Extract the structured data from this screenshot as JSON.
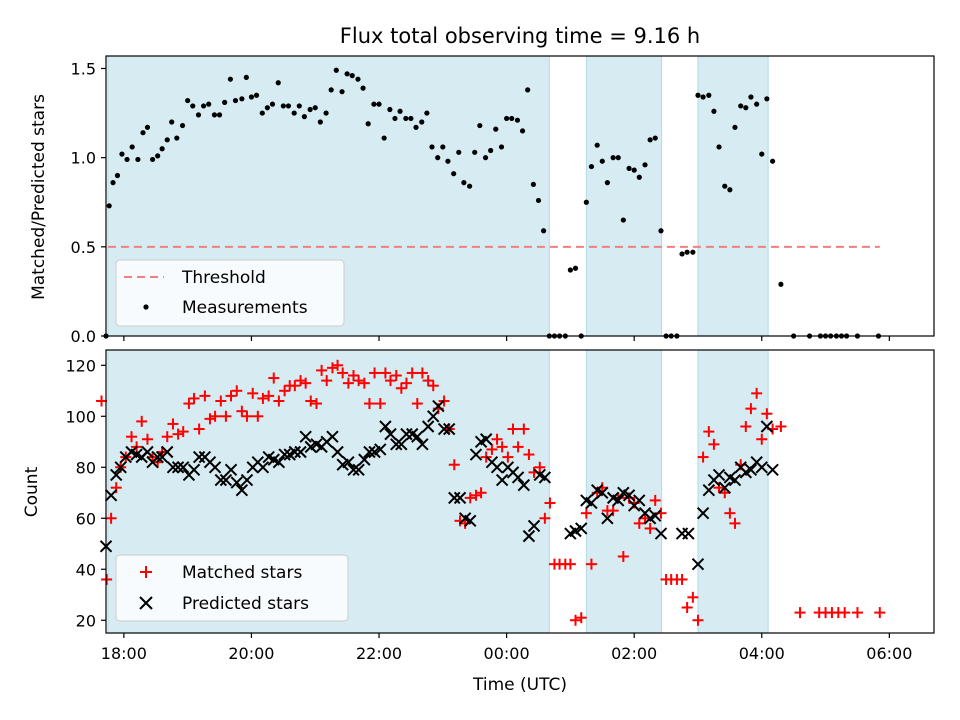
{
  "chart_data": [
    {
      "type": "scatter",
      "title": "Flux total observing time = 9.16 h",
      "xlabel": "",
      "ylabel": "Matched/Predicted stars",
      "x_ticks": [
        "18:00",
        "20:00",
        "22:00",
        "00:00",
        "02:00",
        "04:00",
        "06:00"
      ],
      "ylim": [
        0,
        1.57
      ],
      "y_ticks": [
        "0.0",
        "0.5",
        "1.0",
        "1.5"
      ],
      "legend": {
        "position": "lower-left",
        "entries": [
          "Threshold",
          "Measurements"
        ]
      },
      "threshold": {
        "name": "Threshold",
        "value": 0.5,
        "x_range": [
          17.75,
          29.85
        ],
        "color": "#f08080"
      },
      "observing_windows": [
        [
          17.75,
          24.67
        ],
        [
          25.25,
          26.43
        ],
        [
          27.0,
          28.1
        ]
      ],
      "series": [
        {
          "name": "Measurements",
          "color": "#000000",
          "x": [
            17.72,
            17.77,
            17.83,
            17.9,
            17.97,
            18.05,
            18.13,
            18.22,
            18.3,
            18.37,
            18.45,
            18.53,
            18.6,
            18.68,
            18.75,
            18.83,
            18.92,
            19.0,
            19.08,
            19.17,
            19.25,
            19.33,
            19.42,
            19.5,
            19.58,
            19.67,
            19.75,
            19.85,
            19.92,
            20.0,
            20.08,
            20.17,
            20.25,
            20.33,
            20.42,
            20.5,
            20.58,
            20.67,
            20.75,
            20.83,
            20.92,
            21.0,
            21.08,
            21.17,
            21.25,
            21.33,
            21.42,
            21.5,
            21.58,
            21.67,
            21.75,
            21.83,
            21.92,
            22.0,
            22.08,
            22.17,
            22.25,
            22.33,
            22.42,
            22.5,
            22.58,
            22.67,
            22.75,
            22.83,
            22.92,
            23.0,
            23.08,
            23.17,
            23.25,
            23.33,
            23.42,
            23.5,
            23.58,
            23.67,
            23.75,
            23.83,
            23.92,
            24.0,
            24.08,
            24.17,
            24.25,
            24.33,
            24.42,
            24.5,
            24.58,
            24.67,
            24.75,
            24.83,
            24.92,
            25.0,
            25.08,
            25.17,
            25.25,
            25.33,
            25.42,
            25.5,
            25.58,
            25.67,
            25.75,
            25.83,
            25.92,
            26.0,
            26.08,
            26.17,
            26.25,
            26.33,
            26.42,
            26.5,
            26.58,
            26.67,
            26.75,
            26.83,
            26.92,
            27.0,
            27.08,
            27.17,
            27.25,
            27.33,
            27.42,
            27.5,
            27.58,
            27.67,
            27.75,
            27.83,
            27.92,
            28.0,
            28.08,
            28.17,
            28.3,
            28.5,
            28.75,
            28.92,
            29.0,
            29.08,
            29.17,
            29.25,
            29.33,
            29.5,
            29.83
          ],
          "y": [
            0.0,
            0.73,
            0.86,
            0.9,
            1.02,
            0.99,
            1.06,
            0.99,
            1.14,
            1.17,
            0.99,
            1.01,
            1.05,
            1.1,
            1.2,
            1.11,
            1.18,
            1.32,
            1.29,
            1.24,
            1.29,
            1.3,
            1.24,
            1.24,
            1.31,
            1.44,
            1.32,
            1.33,
            1.45,
            1.34,
            1.35,
            1.25,
            1.28,
            1.3,
            1.42,
            1.29,
            1.29,
            1.25,
            1.29,
            1.23,
            1.27,
            1.28,
            1.2,
            1.25,
            1.38,
            1.49,
            1.37,
            1.47,
            1.46,
            1.44,
            1.39,
            1.19,
            1.3,
            1.3,
            1.11,
            1.27,
            1.22,
            1.26,
            1.22,
            1.22,
            1.17,
            1.2,
            1.25,
            1.06,
            1.0,
            1.06,
            0.98,
            0.91,
            1.03,
            0.86,
            0.84,
            1.03,
            1.18,
            1.0,
            1.04,
            1.16,
            1.06,
            1.22,
            1.22,
            1.21,
            1.15,
            1.38,
            0.85,
            0.76,
            0.59,
            0.0,
            0.0,
            0.0,
            0.0,
            0.37,
            0.38,
            0.0,
            0.75,
            0.95,
            1.07,
            0.98,
            0.86,
            1.0,
            1.0,
            0.65,
            0.94,
            0.93,
            0.89,
            0.96,
            1.1,
            1.11,
            0.59,
            0.0,
            0.0,
            0.0,
            0.46,
            0.47,
            0.47,
            1.35,
            1.34,
            1.35,
            1.26,
            1.06,
            0.84,
            0.82,
            1.17,
            1.29,
            1.28,
            1.34,
            1.3,
            1.02,
            1.33,
            0.98,
            0.29,
            0.0,
            0.0,
            0.0,
            0.0,
            0.0,
            0.0,
            0.0,
            0.0,
            0.0,
            0.0
          ]
        }
      ]
    },
    {
      "type": "scatter",
      "title": "",
      "xlabel": "Time (UTC)",
      "ylabel": "Count",
      "x_ticks": [
        "18:00",
        "20:00",
        "22:00",
        "00:00",
        "02:00",
        "04:00",
        "06:00"
      ],
      "ylim": [
        15,
        126
      ],
      "y_ticks": [
        "20",
        "40",
        "60",
        "80",
        "100",
        "120"
      ],
      "legend": {
        "position": "lower-left",
        "entries": [
          "Matched stars",
          "Predicted stars"
        ]
      },
      "observing_windows": [
        [
          17.75,
          24.67
        ],
        [
          25.25,
          26.43
        ],
        [
          27.0,
          28.1
        ]
      ],
      "series": [
        {
          "name": "Matched stars",
          "marker": "plus",
          "color": "#ff0000",
          "x": [
            17.65,
            17.73,
            17.8,
            17.88,
            17.95,
            18.03,
            18.12,
            18.2,
            18.28,
            18.37,
            18.45,
            18.53,
            18.6,
            18.68,
            18.77,
            18.85,
            18.93,
            19.02,
            19.1,
            19.18,
            19.27,
            19.35,
            19.43,
            19.52,
            19.6,
            19.68,
            19.77,
            19.85,
            19.93,
            20.02,
            20.1,
            20.18,
            20.27,
            20.35,
            20.43,
            20.52,
            20.6,
            20.68,
            20.77,
            20.85,
            20.93,
            21.02,
            21.1,
            21.18,
            21.27,
            21.35,
            21.43,
            21.52,
            21.6,
            21.68,
            21.77,
            21.85,
            21.93,
            22.02,
            22.1,
            22.18,
            22.27,
            22.35,
            22.43,
            22.52,
            22.6,
            22.68,
            22.77,
            22.85,
            22.93,
            23.02,
            23.1,
            23.18,
            23.27,
            23.35,
            23.43,
            23.52,
            23.6,
            23.68,
            23.77,
            23.85,
            23.93,
            24.02,
            24.1,
            24.18,
            24.27,
            24.35,
            24.43,
            24.52,
            24.6,
            24.68,
            24.75,
            24.83,
            24.92,
            25.0,
            25.08,
            25.17,
            25.25,
            25.33,
            25.42,
            25.5,
            25.58,
            25.67,
            25.75,
            25.83,
            25.92,
            26.0,
            26.08,
            26.17,
            26.25,
            26.33,
            26.42,
            26.5,
            26.58,
            26.67,
            26.75,
            26.83,
            26.92,
            27.0,
            27.08,
            27.17,
            27.25,
            27.33,
            27.42,
            27.5,
            27.58,
            27.67,
            27.75,
            27.83,
            27.92,
            28.0,
            28.08,
            28.17,
            28.3,
            28.6,
            28.9,
            29.0,
            29.1,
            29.2,
            29.3,
            29.5,
            29.85
          ],
          "y": [
            106,
            36,
            60,
            72,
            80,
            84,
            92,
            88,
            98,
            91,
            84,
            82,
            86,
            92,
            97,
            93,
            94,
            105,
            107,
            95,
            108,
            99,
            100,
            106,
            100,
            108,
            110,
            102,
            100,
            109,
            100,
            107,
            108,
            115,
            106,
            110,
            112,
            112,
            114,
            113,
            106,
            105,
            118,
            114,
            119,
            120,
            117,
            113,
            116,
            114,
            113,
            105,
            117,
            105,
            117,
            114,
            116,
            111,
            113,
            117,
            105,
            117,
            114,
            112,
            103,
            106,
            95,
            81,
            59,
            58,
            68,
            69,
            70,
            84,
            87,
            91,
            88,
            84,
            95,
            88,
            95,
            85,
            78,
            80,
            60,
            66,
            42,
            42,
            42,
            42,
            20,
            21,
            62,
            42,
            70,
            72,
            63,
            63,
            68,
            45,
            68,
            66,
            58,
            60,
            56,
            67,
            62,
            36,
            36,
            36,
            36,
            25,
            29,
            20,
            84,
            94,
            89,
            72,
            70,
            62,
            58,
            81,
            96,
            103,
            109,
            91,
            101,
            95,
            96,
            23,
            23,
            23,
            23,
            23,
            23,
            23,
            23
          ],
          "y_note": "estimated"
        },
        {
          "name": "Predicted stars",
          "marker": "x",
          "color": "#000000",
          "x": [
            17.72,
            17.8,
            17.88,
            17.95,
            18.03,
            18.12,
            18.2,
            18.28,
            18.37,
            18.45,
            18.53,
            18.6,
            18.68,
            18.77,
            18.85,
            18.93,
            19.02,
            19.1,
            19.18,
            19.27,
            19.35,
            19.43,
            19.52,
            19.6,
            19.68,
            19.77,
            19.85,
            19.93,
            20.02,
            20.1,
            20.18,
            20.27,
            20.35,
            20.43,
            20.52,
            20.6,
            20.68,
            20.77,
            20.85,
            20.93,
            21.02,
            21.1,
            21.18,
            21.27,
            21.35,
            21.43,
            21.52,
            21.6,
            21.68,
            21.77,
            21.85,
            21.93,
            22.02,
            22.1,
            22.18,
            22.27,
            22.35,
            22.43,
            22.52,
            22.6,
            22.68,
            22.77,
            22.85,
            22.93,
            23.02,
            23.1,
            23.18,
            23.27,
            23.35,
            23.43,
            23.52,
            23.6,
            23.68,
            23.77,
            23.85,
            23.93,
            24.02,
            24.1,
            24.18,
            24.27,
            24.35,
            24.43,
            24.52,
            24.6,
            25.0,
            25.08,
            25.17,
            25.25,
            25.33,
            25.42,
            25.5,
            25.58,
            25.67,
            25.75,
            25.83,
            25.92,
            26.0,
            26.08,
            26.17,
            26.25,
            26.33,
            26.42,
            26.75,
            26.85,
            27.0,
            27.08,
            27.17,
            27.25,
            27.33,
            27.42,
            27.5,
            27.58,
            27.67,
            27.75,
            27.83,
            27.92,
            28.0,
            28.08,
            28.17
          ],
          "y": [
            49,
            69,
            77,
            80,
            84,
            86,
            85,
            84,
            86,
            82,
            84,
            84,
            86,
            80,
            80,
            80,
            77,
            79,
            84,
            84,
            82,
            80,
            75,
            75,
            79,
            74,
            71,
            75,
            80,
            82,
            80,
            84,
            83,
            82,
            85,
            85,
            86,
            86,
            92,
            88,
            89,
            88,
            90,
            92,
            86,
            81,
            82,
            79,
            79,
            83,
            86,
            86,
            87,
            96,
            93,
            89,
            89,
            93,
            93,
            92,
            89,
            96,
            100,
            104,
            95,
            95,
            68,
            68,
            60,
            59,
            85,
            90,
            91,
            82,
            80,
            75,
            80,
            78,
            76,
            73,
            53,
            57,
            77,
            76,
            54,
            55,
            56,
            67,
            66,
            71,
            70,
            60,
            68,
            67,
            70,
            69,
            65,
            67,
            62,
            60,
            61,
            54,
            54,
            54,
            42,
            62,
            71,
            75,
            77,
            72,
            76,
            75,
            80,
            78,
            79,
            82,
            80,
            96,
            79
          ],
          "y_note": "estimated"
        }
      ]
    }
  ]
}
